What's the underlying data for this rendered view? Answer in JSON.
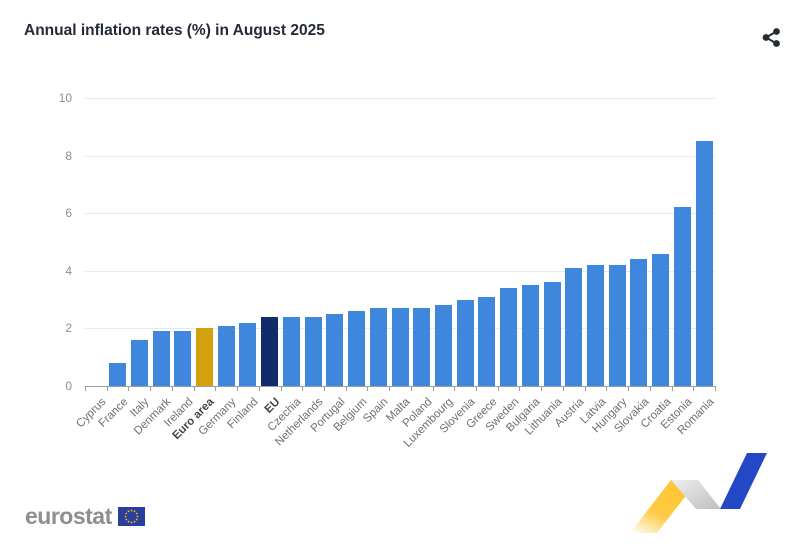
{
  "header": {
    "title": "Annual inflation rates (%) in August 2025",
    "share_icon": "share-icon"
  },
  "chart_data": {
    "type": "bar",
    "title": "Annual inflation rates (%) in August 2025",
    "xlabel": "",
    "ylabel": "",
    "unit": "%",
    "ylim": [
      0,
      10
    ],
    "yticks": [
      0,
      2,
      4,
      6,
      8,
      10
    ],
    "grid": true,
    "legend_position": "none",
    "categories": [
      "Cyprus",
      "France",
      "Italy",
      "Denmark",
      "Ireland",
      "Euro area",
      "Germany",
      "Finland",
      "EU",
      "Czechia",
      "Netherlands",
      "Portugal",
      "Belgium",
      "Spain",
      "Malta",
      "Poland",
      "Luxembourg",
      "Slovenia",
      "Greece",
      "Sweden",
      "Bulgaria",
      "Lithuania",
      "Austria",
      "Latvia",
      "Hungary",
      "Slovakia",
      "Croatia",
      "Estonia",
      "Romania"
    ],
    "values": [
      0.0,
      0.8,
      1.6,
      1.9,
      1.9,
      2.0,
      2.1,
      2.2,
      2.4,
      2.4,
      2.4,
      2.5,
      2.6,
      2.7,
      2.7,
      2.7,
      2.8,
      3.0,
      3.1,
      3.4,
      3.5,
      3.6,
      4.1,
      4.2,
      4.2,
      4.4,
      4.6,
      6.2,
      8.5
    ],
    "bold_categories": [
      "Euro area",
      "EU"
    ],
    "colors": {
      "bar_default": "#3f86dd",
      "bar_euro_area": "#d4a10e",
      "bar_eu": "#112c6b"
    },
    "highlights": {
      "Euro area": "#d4a10e",
      "EU": "#112c6b"
    }
  },
  "footer": {
    "logo_text": "eurostat",
    "flag_icon": "eu-flag-icon",
    "decoration_icon": "zigzag-trend-icon"
  },
  "colors": {
    "gridline": "#e9e9ec",
    "axis": "#989ea6",
    "title_text": "#232a36",
    "y_label_text": "#8e8e93",
    "x_label_text": "#6f6f76",
    "logo_gray": "#8f8f8f",
    "flag_blue": "#2a3f9d",
    "star_yellow": "#f8c301",
    "zigzag_yellow": "#fdc530",
    "zigzag_gray": "#cccccc",
    "zigzag_blue": "#2348c5"
  }
}
